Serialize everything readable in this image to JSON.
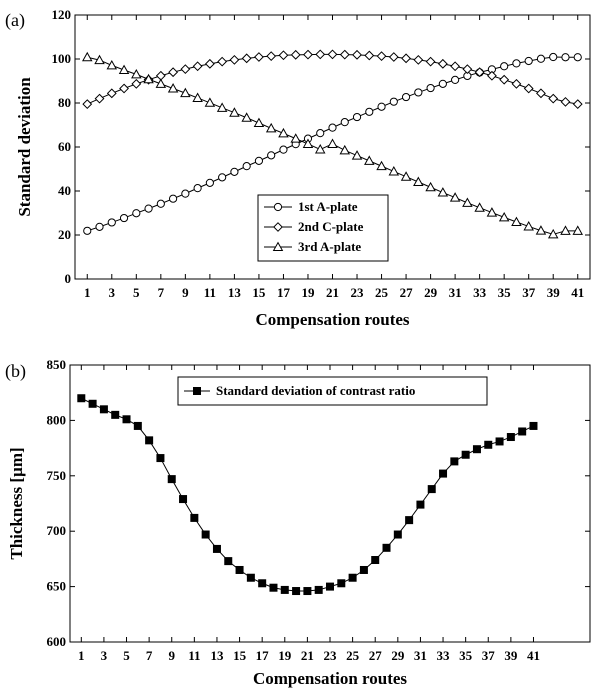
{
  "chart_data": [
    {
      "type": "line",
      "panel_label": "(a)",
      "xlabel": "Compensation routes",
      "ylabel": "Standard deviation",
      "ylim": [
        0,
        120
      ],
      "xlim": [
        0,
        42
      ],
      "yticks": [
        "0",
        "20",
        "40",
        "60",
        "80",
        "100",
        "120"
      ],
      "xticks": [
        "1",
        "3",
        "5",
        "7",
        "9",
        "11",
        "13",
        "15",
        "17",
        "19",
        "21",
        "23",
        "25",
        "27",
        "29",
        "31",
        "33",
        "35",
        "37",
        "39",
        "41"
      ],
      "grid": false,
      "legend_position": "bottom-center",
      "x": [
        1,
        2,
        3,
        4,
        5,
        6,
        7,
        8,
        9,
        10,
        11,
        12,
        13,
        14,
        15,
        16,
        17,
        18,
        19,
        20,
        21,
        22,
        23,
        24,
        25,
        26,
        27,
        28,
        29,
        30,
        31,
        32,
        33,
        34,
        35,
        36,
        37,
        38,
        39,
        40,
        41
      ],
      "series": [
        {
          "name": "1st A-plate",
          "marker": "circle",
          "values": [
            21.9,
            23.7,
            25.7,
            27.7,
            29.9,
            32.0,
            34.2,
            36.5,
            38.8,
            41.3,
            43.7,
            46.2,
            48.7,
            51.3,
            53.7,
            56.2,
            58.8,
            61.3,
            63.8,
            66.3,
            68.8,
            71.3,
            73.6,
            76.0,
            78.3,
            80.6,
            82.7,
            84.8,
            86.8,
            88.7,
            90.5,
            92.3,
            93.9,
            95.3,
            96.7,
            98.0,
            99.1,
            100.1,
            100.9,
            100.8,
            100.8
          ]
        },
        {
          "name": "2nd C-plate",
          "marker": "diamond",
          "values": [
            79.5,
            82.0,
            84.4,
            86.6,
            88.7,
            90.6,
            92.4,
            94.0,
            95.4,
            96.7,
            97.8,
            98.8,
            99.6,
            100.3,
            100.9,
            101.3,
            101.7,
            101.9,
            102.0,
            102.1,
            102.1,
            102.0,
            101.9,
            101.6,
            101.3,
            100.9,
            100.3,
            99.6,
            98.8,
            97.8,
            96.7,
            95.4,
            94.0,
            92.4,
            90.6,
            88.7,
            86.6,
            84.4,
            82.0,
            80.5,
            79.5
          ]
        },
        {
          "name": "3rd A-plate",
          "marker": "triangle",
          "values": [
            100.8,
            99.5,
            97.1,
            95.0,
            93.0,
            90.8,
            88.7,
            86.6,
            84.5,
            82.3,
            80.1,
            77.8,
            75.6,
            73.3,
            70.9,
            68.5,
            66.2,
            63.8,
            61.4,
            58.9,
            61.4,
            58.5,
            56.1,
            53.7,
            51.3,
            48.9,
            46.5,
            44.1,
            41.7,
            39.3,
            37.0,
            34.6,
            32.4,
            30.2,
            28.0,
            25.9,
            23.9,
            22.0,
            20.3,
            21.9,
            21.9
          ]
        }
      ]
    },
    {
      "type": "line",
      "panel_label": "(b)",
      "xlabel": "Compensation routes",
      "ylabel": "Thickness [µm]",
      "ylim": [
        600,
        850
      ],
      "xlim": [
        0,
        46
      ],
      "yticks": [
        "600",
        "650",
        "700",
        "750",
        "800",
        "850"
      ],
      "xticks": [
        "1",
        "3",
        "5",
        "7",
        "9",
        "11",
        "13",
        "15",
        "17",
        "19",
        "21",
        "23",
        "25",
        "27",
        "29",
        "31",
        "33",
        "35",
        "37",
        "39",
        "41"
      ],
      "grid": false,
      "legend_position": "top-center",
      "x": [
        1,
        2,
        3,
        4,
        5,
        6,
        7,
        8,
        9,
        10,
        11,
        12,
        13,
        14,
        15,
        16,
        17,
        18,
        19,
        20,
        21,
        22,
        23,
        24,
        25,
        26,
        27,
        28,
        29,
        30,
        31,
        32,
        33,
        34,
        35,
        36,
        37,
        38,
        39,
        40,
        41
      ],
      "series": [
        {
          "name": "Standard deviation of contrast ratio",
          "marker": "square",
          "values": [
            820,
            815,
            810,
            805,
            801,
            795,
            782,
            766,
            747,
            729,
            712,
            697,
            684,
            673,
            665,
            658,
            653,
            649,
            647,
            646,
            646,
            647,
            650,
            653,
            658,
            665,
            674,
            685,
            697,
            710,
            724,
            738,
            752,
            763,
            769,
            774,
            778,
            781,
            785,
            790,
            795
          ]
        }
      ]
    }
  ]
}
